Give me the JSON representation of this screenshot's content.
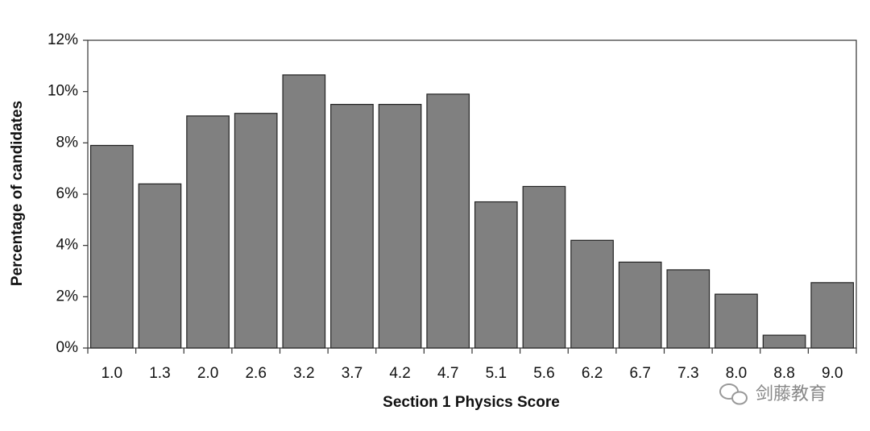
{
  "chart_data": {
    "type": "bar",
    "x_label": "Section 1 Physics Score",
    "y_label": "Percentage of candidates",
    "categories": [
      "1.0",
      "1.3",
      "2.0",
      "2.6",
      "3.2",
      "3.7",
      "4.2",
      "4.7",
      "5.1",
      "5.6",
      "6.2",
      "6.7",
      "7.3",
      "8.0",
      "8.8",
      "9.0"
    ],
    "values": [
      7.9,
      6.4,
      9.05,
      9.15,
      10.65,
      9.5,
      9.5,
      9.9,
      5.7,
      6.3,
      4.2,
      3.35,
      3.05,
      2.1,
      0.5,
      2.55
    ],
    "color": "#808080",
    "ylim": [
      0,
      12
    ],
    "yticks": [
      {
        "value": 0,
        "label": "0%"
      },
      {
        "value": 2,
        "label": "2%"
      },
      {
        "value": 4,
        "label": "4%"
      },
      {
        "value": 6,
        "label": "6%"
      },
      {
        "value": 8,
        "label": "8%"
      },
      {
        "value": 10,
        "label": "10%"
      },
      {
        "value": 12,
        "label": "12%"
      }
    ],
    "grid": false,
    "watermark": "剑藤教育"
  }
}
